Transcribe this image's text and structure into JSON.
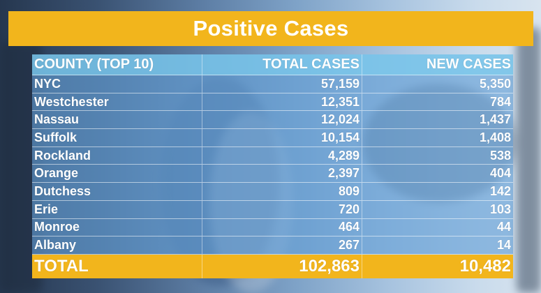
{
  "title": "Positive Cases",
  "table": {
    "headers": [
      "COUNTY (TOP 10)",
      "TOTAL CASES",
      "NEW CASES"
    ],
    "rows": [
      {
        "county": "NYC",
        "total": "57,159",
        "new": "5,350"
      },
      {
        "county": "Westchester",
        "total": "12,351",
        "new": "784"
      },
      {
        "county": "Nassau",
        "total": "12,024",
        "new": "1,437"
      },
      {
        "county": "Suffolk",
        "total": "10,154",
        "new": "1,408"
      },
      {
        "county": "Rockland",
        "total": "4,289",
        "new": "538"
      },
      {
        "county": "Orange",
        "total": "2,397",
        "new": "404"
      },
      {
        "county": "Dutchess",
        "total": "809",
        "new": "142"
      },
      {
        "county": "Erie",
        "total": "720",
        "new": "103"
      },
      {
        "county": "Monroe",
        "total": "464",
        "new": "44"
      },
      {
        "county": "Albany",
        "total": "267",
        "new": "14"
      }
    ],
    "total": {
      "label": "TOTAL",
      "total": "102,863",
      "new": "10,482"
    }
  },
  "colors": {
    "banner": "#f2b51c",
    "header_row": "#78c4e9",
    "body_row": "#64a0d7",
    "text": "#ffffff"
  }
}
